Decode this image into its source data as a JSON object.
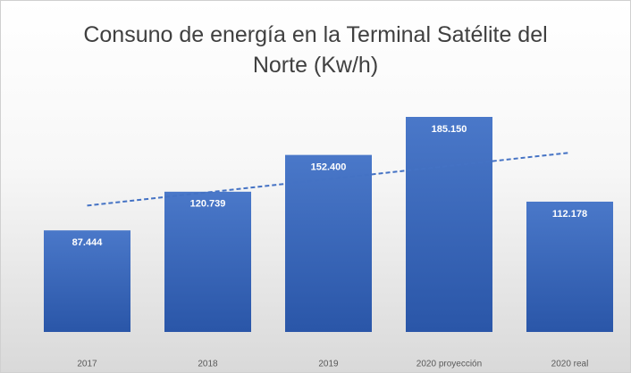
{
  "chart_data": {
    "type": "bar",
    "title": "Consuno de energía en la Terminal Satélite del Norte (Kw/h)",
    "categories": [
      "2017",
      "2018",
      "2019",
      "2020 proyección",
      "2020 real"
    ],
    "values": [
      87444,
      120739,
      152400,
      185150,
      112178
    ],
    "value_labels": [
      "87.444",
      "120.739",
      "152.400",
      "185.150",
      "112.178"
    ],
    "color": "#4472c4",
    "trendline": true
  }
}
